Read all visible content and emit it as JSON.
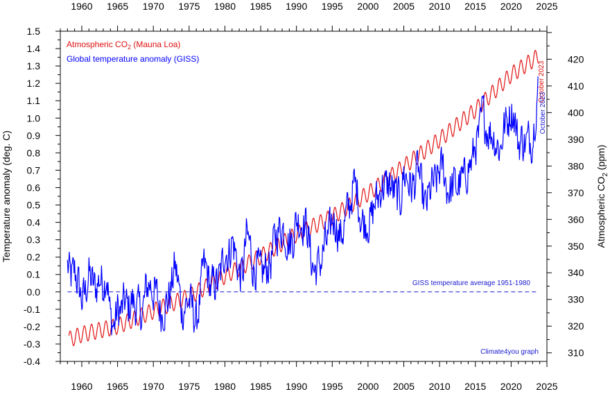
{
  "chart_data": {
    "type": "line",
    "title": "",
    "x": {
      "label": "",
      "range": [
        1957,
        2025
      ],
      "ticks": [
        1960,
        1965,
        1970,
        1975,
        1980,
        1985,
        1990,
        1995,
        2000,
        2005,
        2010,
        2015,
        2020,
        2025
      ]
    },
    "y_left": {
      "label": "Temperature anomaly (deg. C)",
      "range": [
        -0.4,
        1.5
      ],
      "ticks": [
        -0.4,
        -0.3,
        -0.2,
        -0.1,
        0.0,
        0.1,
        0.2,
        0.3,
        0.4,
        0.5,
        0.6,
        0.7,
        0.8,
        0.9,
        1.0,
        1.1,
        1.2,
        1.3,
        1.4,
        1.5
      ]
    },
    "y_right": {
      "label_main": "Atmospheric CO",
      "label_sub": "2",
      "label_unit": " (ppm)",
      "range": [
        306.8,
        430.5
      ],
      "ticks": [
        310,
        320,
        330,
        340,
        350,
        360,
        370,
        380,
        390,
        400,
        410,
        420
      ]
    },
    "legend": {
      "placement": "top-left",
      "co2_main": "Atmospheric CO",
      "co2_sub": "2",
      "co2_rest": " (Mauna Loa)",
      "temp": "Global temperature anomaly (GISS)"
    },
    "annotations": {
      "baseline": "GISS temperature average 1951-1980",
      "credit": "Climate4you graph",
      "co2_end": "October 2023",
      "temp_end": "October 2023"
    },
    "colors": {
      "co2": "#e01010",
      "temp": "#0000ff",
      "baseline": "#1a1ad0",
      "axis": "#000000"
    },
    "series": [
      {
        "name": "Atmospheric CO2 (Mauna Loa)",
        "axis": "right",
        "resolution": "monthly, smooth trend with seasonal cycle",
        "trend_knots": [
          [
            1958.2,
            315.0
          ],
          [
            1960,
            316.9
          ],
          [
            1965,
            320.0
          ],
          [
            1970,
            325.7
          ],
          [
            1975,
            331.1
          ],
          [
            1980,
            338.8
          ],
          [
            1985,
            346.1
          ],
          [
            1990,
            354.4
          ],
          [
            1995,
            360.9
          ],
          [
            2000,
            369.7
          ],
          [
            2005,
            379.8
          ],
          [
            2010,
            389.9
          ],
          [
            2015,
            401.0
          ],
          [
            2020,
            414.2
          ],
          [
            2023.8,
            421.1
          ]
        ],
        "seasonal_amplitude": 3.0
      },
      {
        "name": "Global temperature anomaly (GISS)",
        "axis": "left",
        "resolution": "monthly",
        "x": [
          1958.0,
          1958.5,
          1959.0,
          1959.5,
          1960.0,
          1960.5,
          1961.0,
          1961.5,
          1962.0,
          1962.5,
          1963.0,
          1963.5,
          1964.0,
          1964.5,
          1965.0,
          1965.5,
          1966.0,
          1966.5,
          1967.0,
          1967.5,
          1968.0,
          1968.5,
          1969.0,
          1969.5,
          1970.0,
          1970.5,
          1971.0,
          1971.5,
          1972.0,
          1972.5,
          1973.0,
          1973.5,
          1974.0,
          1974.5,
          1975.0,
          1975.5,
          1976.0,
          1976.5,
          1977.0,
          1977.5,
          1978.0,
          1978.5,
          1979.0,
          1979.5,
          1980.0,
          1980.5,
          1981.0,
          1981.5,
          1982.0,
          1982.5,
          1983.0,
          1983.5,
          1984.0,
          1984.5,
          1985.0,
          1985.5,
          1986.0,
          1986.5,
          1987.0,
          1987.5,
          1988.0,
          1988.5,
          1989.0,
          1989.5,
          1990.0,
          1990.5,
          1991.0,
          1991.5,
          1992.0,
          1992.5,
          1993.0,
          1993.5,
          1994.0,
          1994.5,
          1995.0,
          1995.5,
          1996.0,
          1996.5,
          1997.0,
          1997.5,
          1998.0,
          1998.5,
          1999.0,
          1999.5,
          2000.0,
          2000.5,
          2001.0,
          2001.5,
          2002.0,
          2002.5,
          2003.0,
          2003.5,
          2004.0,
          2004.5,
          2005.0,
          2005.5,
          2006.0,
          2006.5,
          2007.0,
          2007.5,
          2008.0,
          2008.5,
          2009.0,
          2009.5,
          2010.0,
          2010.5,
          2011.0,
          2011.5,
          2012.0,
          2012.5,
          2013.0,
          2013.5,
          2014.0,
          2014.5,
          2015.0,
          2015.5,
          2016.0,
          2016.5,
          2017.0,
          2017.5,
          2018.0,
          2018.5,
          2019.0,
          2019.5,
          2020.0,
          2020.5,
          2021.0,
          2021.5,
          2022.0,
          2022.5,
          2023.0,
          2023.5,
          2023.8
        ],
        "values": [
          0.15,
          0.08,
          0.12,
          0.05,
          -0.05,
          0.0,
          0.1,
          0.05,
          0.02,
          0.08,
          0.05,
          0.1,
          -0.15,
          -0.2,
          -0.1,
          -0.12,
          -0.05,
          -0.1,
          -0.05,
          -0.08,
          -0.1,
          -0.12,
          0.02,
          0.05,
          0.0,
          -0.02,
          -0.12,
          -0.1,
          -0.05,
          0.02,
          0.15,
          0.05,
          -0.12,
          -0.08,
          -0.05,
          -0.1,
          -0.18,
          -0.05,
          0.15,
          0.12,
          0.02,
          0.05,
          0.05,
          0.12,
          0.25,
          0.2,
          0.3,
          0.22,
          0.1,
          0.1,
          0.32,
          0.28,
          0.12,
          0.15,
          0.1,
          0.12,
          0.15,
          0.18,
          0.32,
          0.35,
          0.38,
          0.32,
          0.28,
          0.3,
          0.42,
          0.4,
          0.4,
          0.38,
          0.2,
          0.12,
          0.15,
          0.18,
          0.28,
          0.3,
          0.42,
          0.4,
          0.32,
          0.35,
          0.45,
          0.5,
          0.62,
          0.58,
          0.42,
          0.4,
          0.4,
          0.42,
          0.52,
          0.55,
          0.62,
          0.6,
          0.62,
          0.58,
          0.55,
          0.52,
          0.68,
          0.65,
          0.6,
          0.62,
          0.72,
          0.58,
          0.48,
          0.55,
          0.62,
          0.62,
          0.7,
          0.72,
          0.6,
          0.58,
          0.62,
          0.6,
          0.64,
          0.65,
          0.72,
          0.74,
          0.85,
          0.88,
          1.05,
          0.95,
          0.92,
          0.9,
          0.85,
          0.82,
          0.95,
          0.98,
          1.05,
          1.0,
          0.85,
          0.88,
          0.85,
          0.88,
          0.88,
          1.08,
          1.22
        ]
      }
    ]
  }
}
